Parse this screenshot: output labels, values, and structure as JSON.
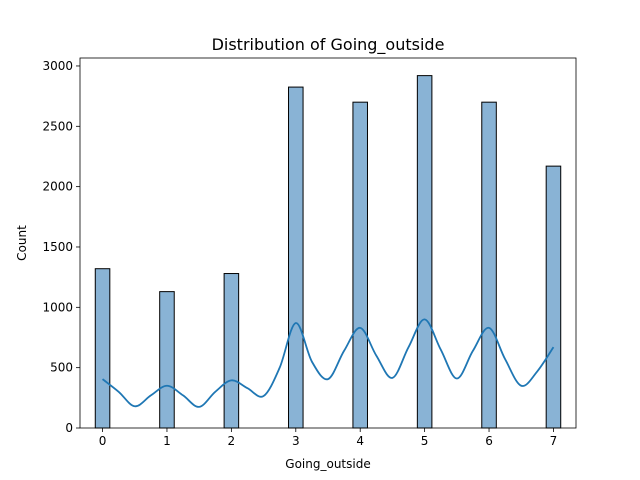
{
  "chart_data": {
    "type": "bar",
    "title": "Distribution of Going_outside",
    "xlabel": "Going_outside",
    "ylabel": "Count",
    "x": [
      0,
      1,
      2,
      3,
      4,
      5,
      6,
      7
    ],
    "values": [
      1320,
      1130,
      1280,
      2825,
      2700,
      2920,
      2700,
      2170
    ],
    "bar_width": 0.2258,
    "kde": {
      "x": [
        0,
        0.25,
        0.5,
        0.75,
        1,
        1.25,
        1.5,
        1.75,
        2,
        2.25,
        2.5,
        2.75,
        3,
        3.25,
        3.5,
        3.75,
        4,
        4.25,
        4.5,
        4.75,
        5,
        5.25,
        5.5,
        5.75,
        6,
        6.25,
        6.5,
        6.75,
        7
      ],
      "y": [
        405,
        300,
        180,
        270,
        350,
        270,
        175,
        300,
        395,
        330,
        265,
        500,
        870,
        550,
        405,
        640,
        830,
        600,
        415,
        670,
        900,
        650,
        410,
        640,
        830,
        570,
        350,
        470,
        670
      ]
    },
    "xticks": [
      "0",
      "1",
      "2",
      "3",
      "4",
      "5",
      "6",
      "7"
    ],
    "yticks": [
      "0",
      "500",
      "1000",
      "1500",
      "2000",
      "2500",
      "3000"
    ],
    "xlim": [
      -0.35,
      7.35
    ],
    "ylim": [
      0,
      3066
    ],
    "grid": false,
    "colors": {
      "bar_fill": "#89b3d5",
      "bar_edge": "#000000",
      "kde_line": "#1f77b4"
    }
  }
}
